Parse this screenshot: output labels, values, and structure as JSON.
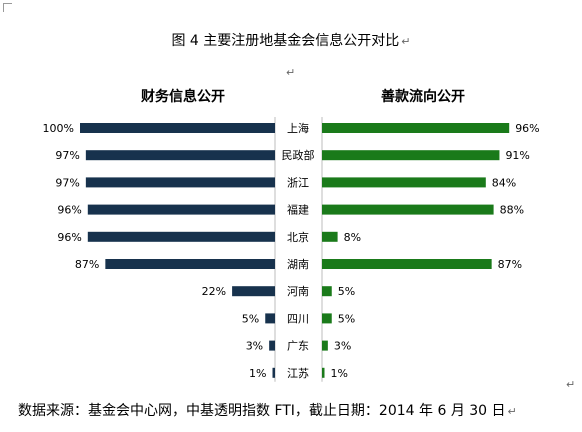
{
  "title": "图 4  主要注册地基金会信息公开对比",
  "paragraph_mark": "↵",
  "source": "数据来源：基金会中心网，中基透明指数 FTI，截止日期：2014 年 6 月 30 日",
  "chart_data": {
    "type": "bar",
    "categories": [
      "上海",
      "民政部",
      "浙江",
      "福建",
      "北京",
      "湖南",
      "河南",
      "四川",
      "广东",
      "江苏"
    ],
    "series": [
      {
        "name": "财务信息公开",
        "values": [
          100,
          97,
          97,
          96,
          96,
          87,
          22,
          5,
          3,
          1
        ],
        "labels": [
          "100%",
          "97%",
          "97%",
          "96%",
          "96%",
          "87%",
          "22%",
          "5%",
          "3%",
          "1%"
        ],
        "color": "#17324d",
        "direction": "left"
      },
      {
        "name": "善款流向公开",
        "values": [
          96,
          91,
          84,
          88,
          8,
          87,
          5,
          5,
          3,
          1
        ],
        "labels": [
          "96%",
          "91%",
          "84%",
          "88%",
          "8%",
          "87%",
          "5%",
          "5%",
          "3%",
          "1%"
        ],
        "color": "#1a7a1a",
        "direction": "right"
      }
    ],
    "xlim": [
      0,
      100
    ],
    "grid": false,
    "legend": "none"
  }
}
